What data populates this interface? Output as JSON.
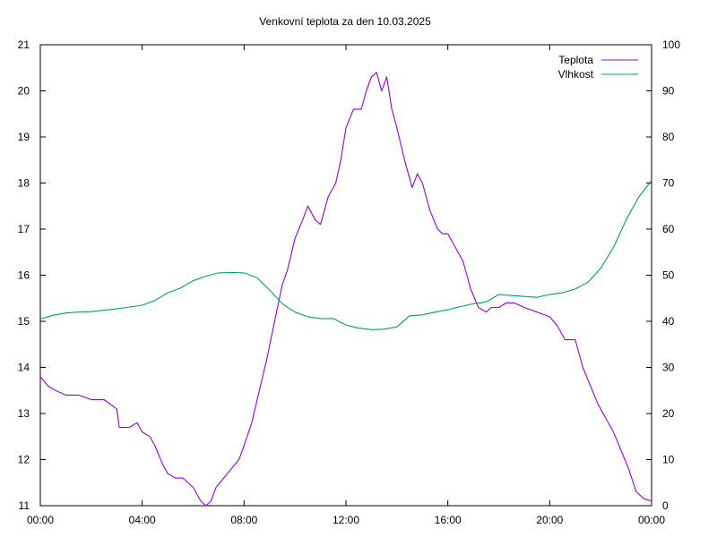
{
  "chart_data": {
    "type": "line",
    "title": "Venkovní teplota za den 10.03.2025",
    "x_ticks": [
      "00:00",
      "04:00",
      "08:00",
      "12:00",
      "16:00",
      "20:00",
      "00:00"
    ],
    "x_range_hours": [
      0,
      24
    ],
    "y_left_range": [
      11,
      21
    ],
    "y_left_ticks": [
      "11",
      "12",
      "13",
      "14",
      "15",
      "16",
      "17",
      "18",
      "19",
      "20",
      "21"
    ],
    "y_right_range": [
      0,
      100
    ],
    "y_right_ticks": [
      "0",
      "10",
      "20",
      "30",
      "40",
      "50",
      "60",
      "70",
      "80",
      "90",
      "100"
    ],
    "grid": false,
    "legend_position": "top-right",
    "series": [
      {
        "name": "Teplota",
        "axis": "left",
        "color": "#9400d3",
        "x": [
          0,
          0.3,
          0.6,
          1.0,
          1.5,
          2.0,
          2.5,
          3.0,
          3.1,
          3.2,
          3.5,
          3.8,
          4.0,
          4.3,
          4.5,
          4.8,
          5.0,
          5.3,
          5.6,
          6.0,
          6.3,
          6.5,
          6.7,
          6.9,
          7.2,
          7.5,
          7.8,
          8.0,
          8.3,
          8.6,
          8.9,
          9.2,
          9.5,
          9.7,
          10.0,
          10.3,
          10.5,
          10.8,
          11.0,
          11.3,
          11.6,
          11.8,
          12.0,
          12.3,
          12.6,
          12.8,
          13.0,
          13.2,
          13.4,
          13.6,
          13.8,
          14.0,
          14.3,
          14.6,
          14.8,
          15.0,
          15.3,
          15.6,
          15.8,
          16.0,
          16.3,
          16.6,
          16.9,
          17.2,
          17.5,
          17.7,
          17.9,
          18.0,
          18.3,
          18.6,
          19.0,
          19.5,
          20.0,
          20.3,
          20.6,
          21.0,
          21.3,
          21.6,
          21.9,
          22.2,
          22.5,
          22.8,
          23.1,
          23.4,
          23.7,
          24.0
        ],
        "values": [
          13.8,
          13.6,
          13.5,
          13.4,
          13.4,
          13.3,
          13.3,
          13.1,
          12.7,
          12.7,
          12.7,
          12.8,
          12.6,
          12.5,
          12.3,
          11.9,
          11.7,
          11.6,
          11.6,
          11.4,
          11.1,
          11.0,
          11.1,
          11.4,
          11.6,
          11.8,
          12.0,
          12.3,
          12.8,
          13.5,
          14.2,
          15.0,
          15.8,
          16.1,
          16.8,
          17.2,
          17.5,
          17.2,
          17.1,
          17.7,
          18.0,
          18.5,
          19.2,
          19.6,
          19.6,
          20.0,
          20.3,
          20.4,
          20.0,
          20.3,
          19.6,
          19.2,
          18.5,
          17.9,
          18.2,
          18.0,
          17.4,
          17.0,
          16.9,
          16.9,
          16.6,
          16.3,
          15.7,
          15.3,
          15.2,
          15.3,
          15.3,
          15.3,
          15.4,
          15.4,
          15.3,
          15.2,
          15.1,
          14.9,
          14.6,
          14.6,
          14.0,
          13.6,
          13.2,
          12.9,
          12.6,
          12.2,
          11.8,
          11.3,
          11.15,
          11.1
        ]
      },
      {
        "name": "Vlhkost",
        "axis": "right",
        "color": "#009e73",
        "x": [
          0,
          0.5,
          1.0,
          1.5,
          2.0,
          2.5,
          3.0,
          3.5,
          4.0,
          4.5,
          5.0,
          5.5,
          6.0,
          6.5,
          7.0,
          7.5,
          8.0,
          8.5,
          9.0,
          9.5,
          10.0,
          10.5,
          11.0,
          11.5,
          12.0,
          12.5,
          13.0,
          13.5,
          14.0,
          14.5,
          15.0,
          15.5,
          16.0,
          16.5,
          17.0,
          17.5,
          18.0,
          18.5,
          19.0,
          19.5,
          20.0,
          20.5,
          21.0,
          21.5,
          22.0,
          22.5,
          23.0,
          23.5,
          24.0
        ],
        "values": [
          40.5,
          41.3,
          41.8,
          42.0,
          42.1,
          42.4,
          42.7,
          43.1,
          43.5,
          44.5,
          46.2,
          47.2,
          48.8,
          49.8,
          50.5,
          50.6,
          50.5,
          49.5,
          46.8,
          43.8,
          42.0,
          41.0,
          40.6,
          40.6,
          39.2,
          38.5,
          38.2,
          38.3,
          38.8,
          41.2,
          41.4,
          42.0,
          42.5,
          43.2,
          43.8,
          44.2,
          45.8,
          45.6,
          45.4,
          45.2,
          45.8,
          46.2,
          47.0,
          48.5,
          51.5,
          56.0,
          62.0,
          67.0,
          70.5
        ]
      }
    ]
  }
}
